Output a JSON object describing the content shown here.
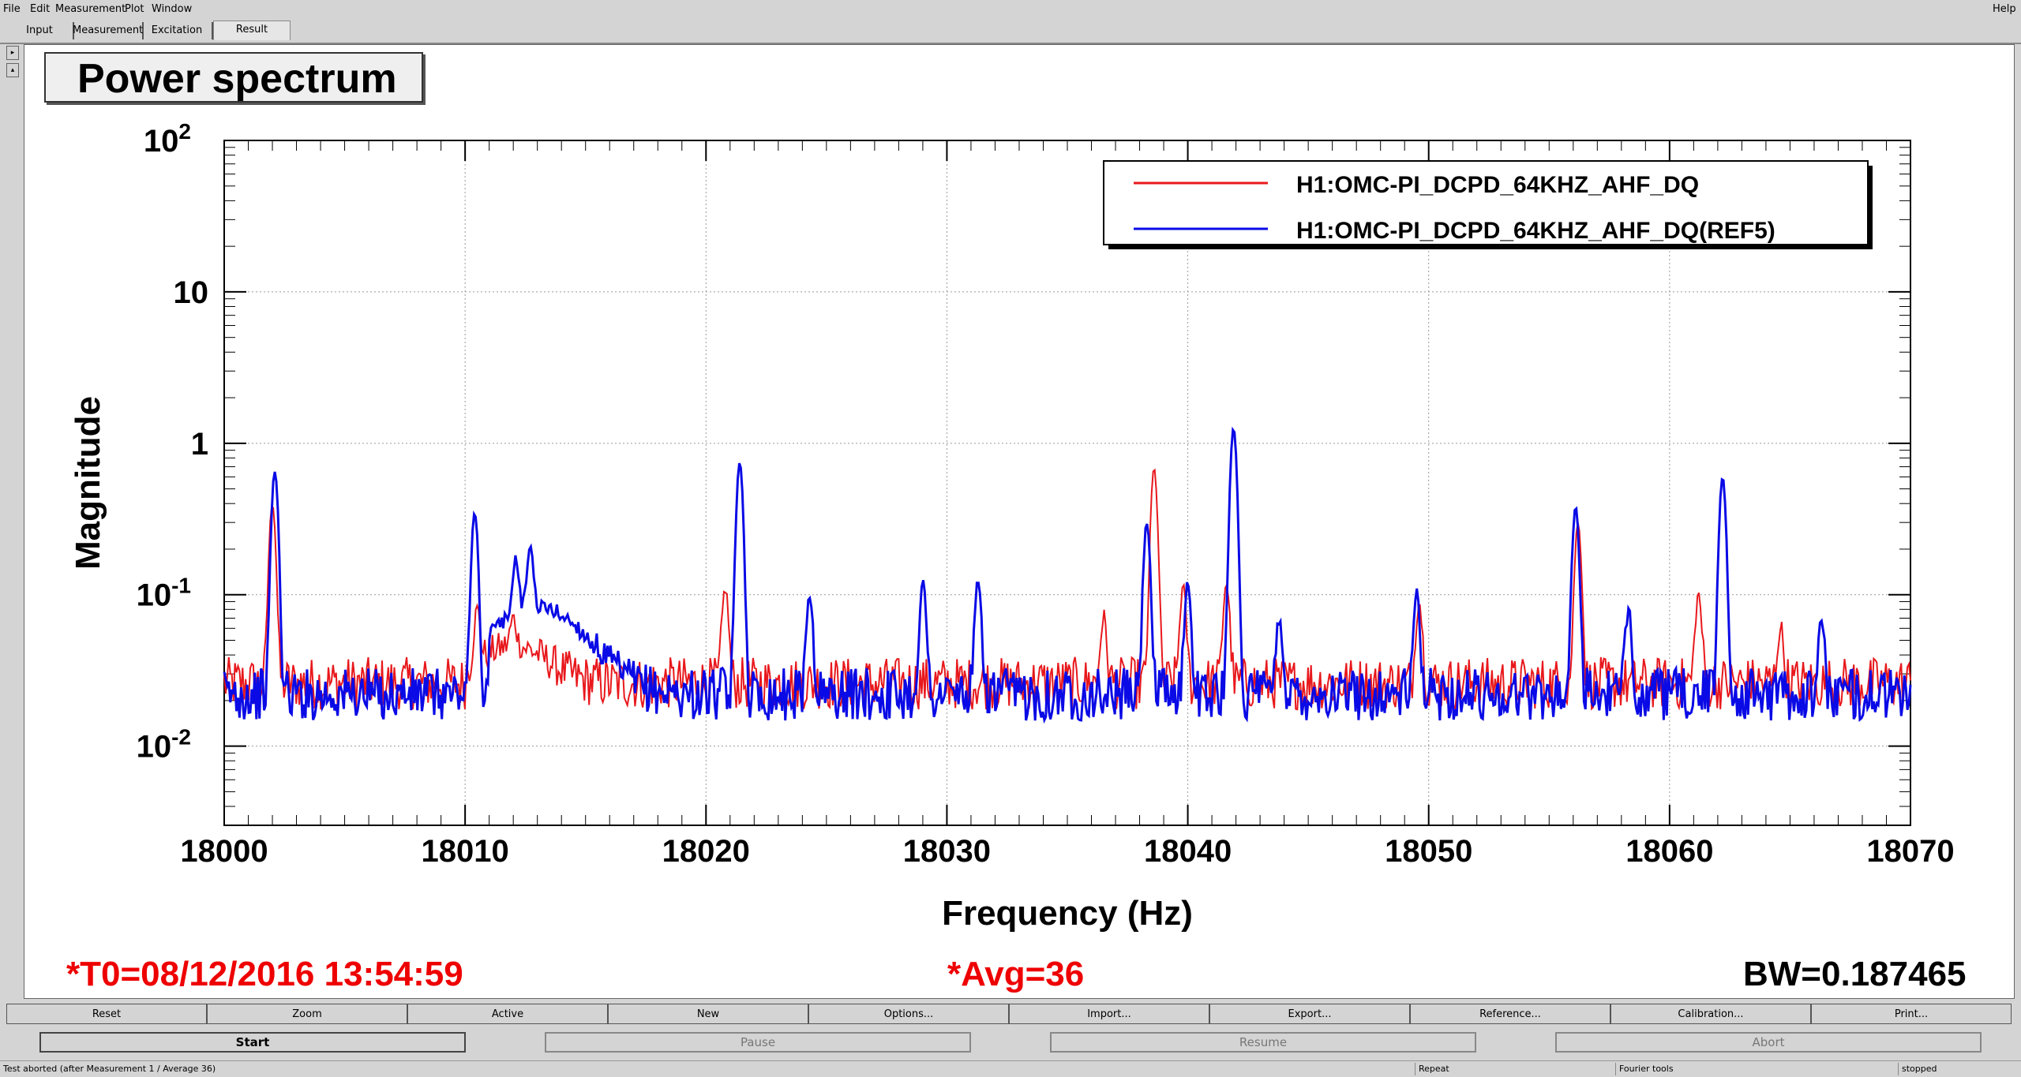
{
  "menubar": {
    "items": [
      "File",
      "Edit",
      "Measurement",
      "Plot",
      "Window"
    ],
    "help": "Help"
  },
  "tabs": [
    "Input",
    "Measurement",
    "Excitation",
    "Result"
  ],
  "plot": {
    "title": "Power spectrum",
    "bottom_left": "*T0=08/12/2016 13:54:59",
    "bottom_center": "*Avg=36",
    "bottom_right": "BW=0.187465",
    "colors": {
      "red_trace": "#e8181c",
      "blue_trace": "#0a0ae6",
      "annotation": "#ee0000"
    }
  },
  "chart_data": {
    "type": "line",
    "xlabel": "Frequency (Hz)",
    "ylabel": "Magnitude",
    "xlim": [
      18000,
      18070
    ],
    "ylim": [
      0.003,
      100
    ],
    "yscale": "log",
    "grid": true,
    "legend_position": "top-right",
    "x_ticks": [
      "18000",
      "18010",
      "18020",
      "18030",
      "18040",
      "18050",
      "18060",
      "18070"
    ],
    "y_ticks": [
      {
        "base": "10",
        "exp": "2",
        "value": 100
      },
      {
        "base": "10",
        "exp": "",
        "value": 10
      },
      {
        "base": "1",
        "exp": "",
        "value": 1
      },
      {
        "base": "10",
        "exp": "-1",
        "value": 0.1
      },
      {
        "base": "10",
        "exp": "-2",
        "value": 0.01
      }
    ],
    "series": [
      {
        "name": "H1:OMC-PI_DCPD_64KHZ_AHF_DQ",
        "color": "#e8181c",
        "baseline": 0.026,
        "peaks": [
          {
            "x": 18002.0,
            "y": 0.4
          },
          {
            "x": 18010.5,
            "y": 0.07
          },
          {
            "x": 18012.0,
            "y": 0.05
          },
          {
            "x": 18020.8,
            "y": 0.11
          },
          {
            "x": 18036.5,
            "y": 0.07
          },
          {
            "x": 18038.6,
            "y": 0.68
          },
          {
            "x": 18039.8,
            "y": 0.11
          },
          {
            "x": 18041.6,
            "y": 0.12
          },
          {
            "x": 18049.6,
            "y": 0.09
          },
          {
            "x": 18056.2,
            "y": 0.3
          },
          {
            "x": 18061.2,
            "y": 0.1
          },
          {
            "x": 18064.6,
            "y": 0.06
          }
        ]
      },
      {
        "name": "H1:OMC-PI_DCPD_64KHZ_AHF_DQ(REF5)",
        "color": "#0a0ae6",
        "baseline": 0.022,
        "peaks": [
          {
            "x": 18002.1,
            "y": 0.65
          },
          {
            "x": 18010.4,
            "y": 0.35
          },
          {
            "x": 18012.1,
            "y": 0.12
          },
          {
            "x": 18012.7,
            "y": 0.15
          },
          {
            "x": 18021.4,
            "y": 0.75
          },
          {
            "x": 18024.3,
            "y": 0.1
          },
          {
            "x": 18029.0,
            "y": 0.12
          },
          {
            "x": 18031.3,
            "y": 0.12
          },
          {
            "x": 18038.3,
            "y": 0.3
          },
          {
            "x": 18040.0,
            "y": 0.12
          },
          {
            "x": 18041.9,
            "y": 1.25
          },
          {
            "x": 18043.8,
            "y": 0.07
          },
          {
            "x": 18049.5,
            "y": 0.1
          },
          {
            "x": 18056.1,
            "y": 0.38
          },
          {
            "x": 18058.3,
            "y": 0.08
          },
          {
            "x": 18062.2,
            "y": 0.6
          },
          {
            "x": 18066.3,
            "y": 0.06
          }
        ]
      }
    ]
  },
  "plot_buttons": [
    "Reset",
    "Zoom",
    "Active",
    "New",
    "Options...",
    "Import...",
    "Export...",
    "Reference...",
    "Calibration...",
    "Print..."
  ],
  "control_buttons": [
    "Start",
    "Pause",
    "Resume",
    "Abort"
  ],
  "status": {
    "message": "Test aborted (after Measurement 1 / Average 36)",
    "repeat": "Repeat",
    "tools": "Fourier tools",
    "state": "stopped"
  }
}
